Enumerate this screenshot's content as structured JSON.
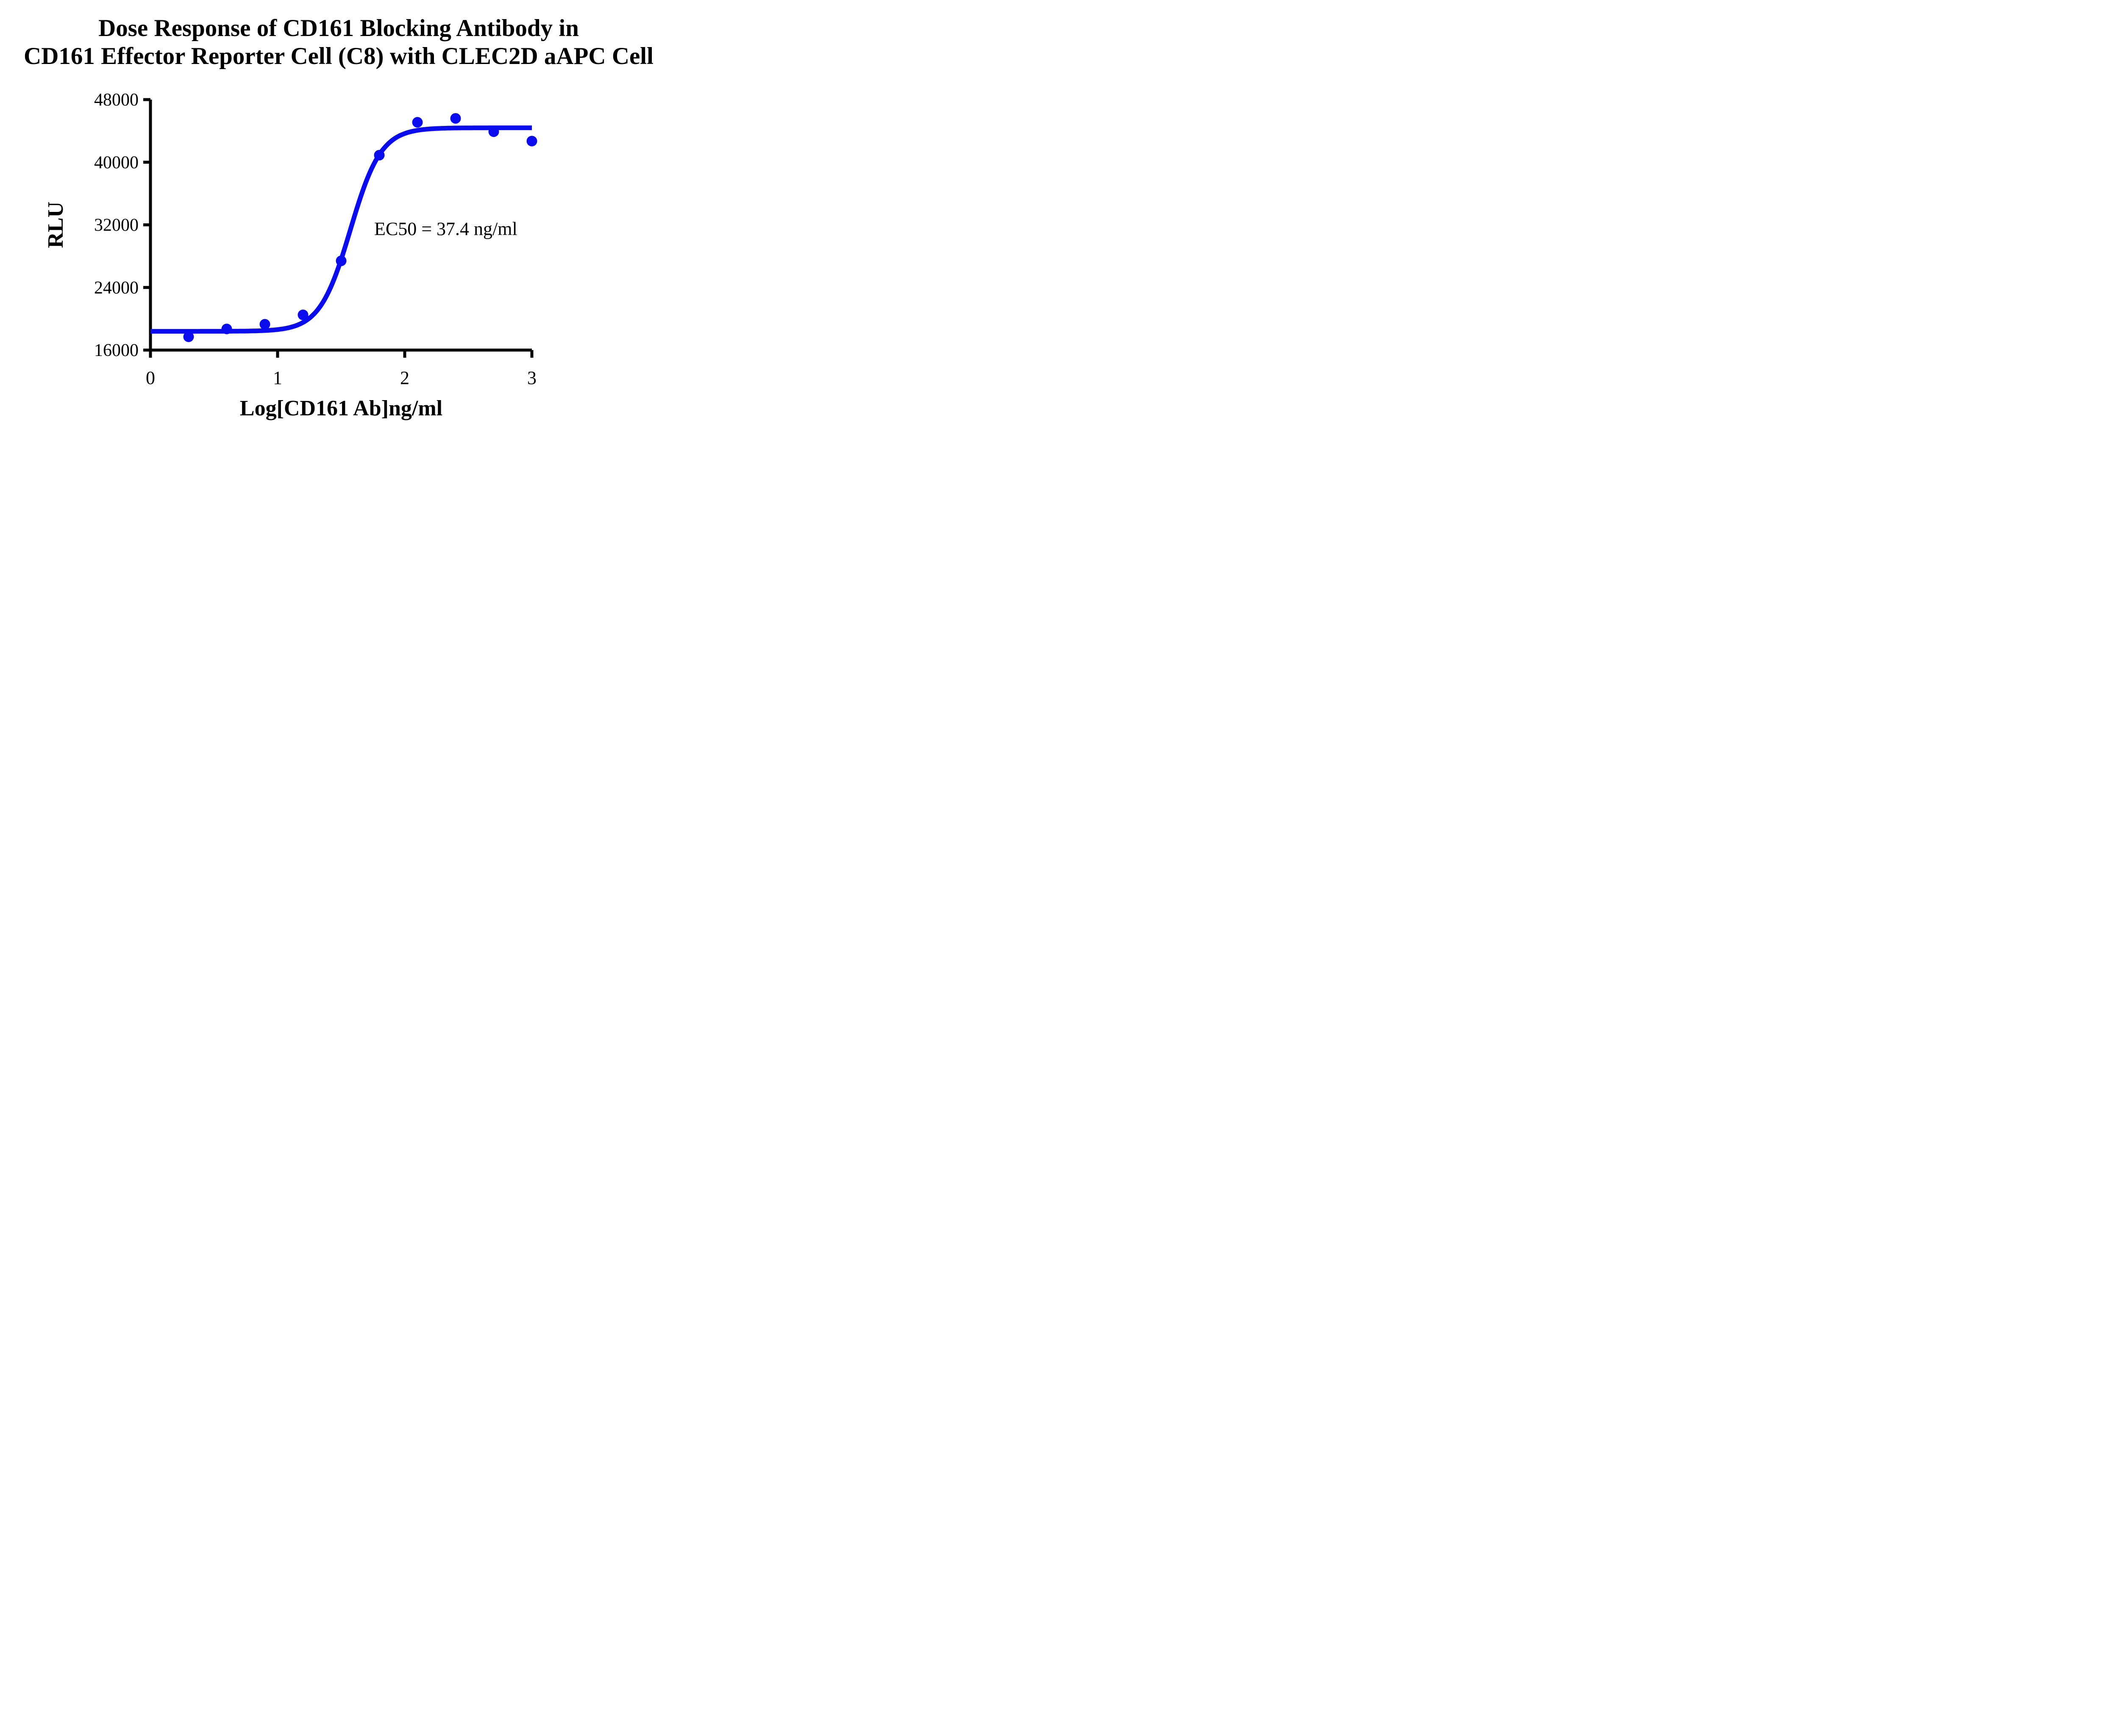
{
  "figure": {
    "title_line1": "Dose Response of CD161 Blocking Antibody in",
    "title_line2": "CD161 Effector Reporter Cell (C8) with CLEC2D aAPC Cell"
  },
  "chart_data": {
    "type": "scatter",
    "title": "Dose Response of CD161 Blocking Antibody in CD161 Effector Reporter Cell (C8) with CLEC2D aAPC Cell",
    "xlabel": "Log[CD161 Ab]ng/ml",
    "ylabel": "RLU",
    "xlim": [
      0,
      3
    ],
    "ylim": [
      16000,
      48000
    ],
    "x_ticks": [
      0,
      1,
      2,
      3
    ],
    "x_tick_labels": [
      "0",
      "1",
      "2",
      "3"
    ],
    "y_ticks": [
      16000,
      24000,
      32000,
      40000,
      48000
    ],
    "y_tick_labels": [
      "16000",
      "24000",
      "32000",
      "40000",
      "48000"
    ],
    "grid": false,
    "legend_position": "none",
    "points": {
      "x": [
        0.3,
        0.6,
        0.9,
        1.2,
        1.5,
        1.8,
        2.1,
        2.4,
        2.7,
        3.0
      ],
      "rlu": [
        17700,
        18700,
        19300,
        20500,
        27400,
        40900,
        45100,
        45600,
        43900,
        42700
      ]
    },
    "fit_curve": {
      "model": "4PL sigmoid",
      "bottom": 18400,
      "top": 44400,
      "ec50_ng_ml": 37.4,
      "log_ec50": 1.5729,
      "hill_slope": 3.6
    },
    "annotation": {
      "text": "EC50 = 37.4 ng/ml",
      "x_log": 1.76,
      "y_rlu": 31500
    },
    "series_color": "#0b0cee",
    "axis_color": "#000000"
  }
}
